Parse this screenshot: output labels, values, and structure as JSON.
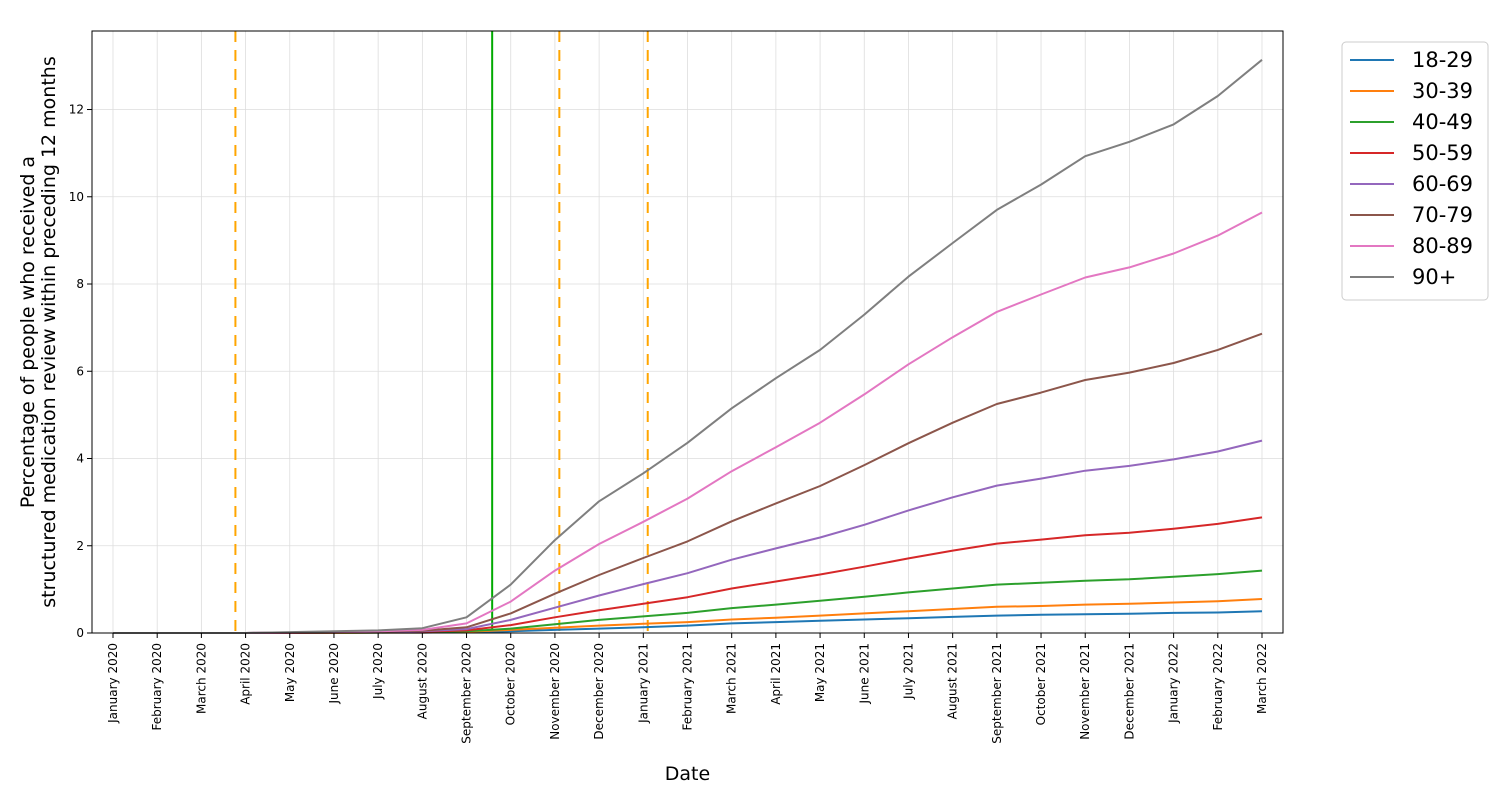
{
  "chart_data": {
    "type": "line",
    "title": "",
    "xlabel": "Date",
    "ylabel_line1": "Percentage of people who received a",
    "ylabel_line2": "structured medication review within preceding 12 months",
    "ylim": [
      0,
      13.8
    ],
    "yticks": [
      0,
      2,
      4,
      6,
      8,
      10,
      12
    ],
    "grid": true,
    "legend_position": "outside-top-right",
    "categories": [
      "January 2020",
      "February 2020",
      "March 2020",
      "April 2020",
      "May 2020",
      "June 2020",
      "July 2020",
      "August 2020",
      "September 2020",
      "October 2020",
      "November 2020",
      "December 2020",
      "January 2021",
      "February 2021",
      "March 2021",
      "April 2021",
      "May 2021",
      "June 2021",
      "July 2021",
      "August 2021",
      "September 2021",
      "October 2021",
      "November 2021",
      "December 2021",
      "January 2022",
      "February 2022",
      "March 2022"
    ],
    "series": [
      {
        "name": "18-29",
        "color": "#1f77b4",
        "values": [
          0,
          0,
          0,
          0,
          0,
          0,
          0.01,
          0.01,
          0.02,
          0.04,
          0.07,
          0.1,
          0.13,
          0.17,
          0.22,
          0.25,
          0.28,
          0.31,
          0.34,
          0.37,
          0.4,
          0.42,
          0.43,
          0.44,
          0.46,
          0.47,
          0.5
        ]
      },
      {
        "name": "30-39",
        "color": "#ff7f0e",
        "values": [
          0,
          0,
          0,
          0,
          0,
          0,
          0.01,
          0.01,
          0.03,
          0.07,
          0.12,
          0.17,
          0.21,
          0.25,
          0.31,
          0.35,
          0.4,
          0.45,
          0.5,
          0.55,
          0.6,
          0.62,
          0.65,
          0.67,
          0.7,
          0.73,
          0.78
        ]
      },
      {
        "name": "40-49",
        "color": "#2ca02c",
        "values": [
          0,
          0,
          0,
          0,
          0,
          0.01,
          0.01,
          0.02,
          0.04,
          0.1,
          0.2,
          0.3,
          0.38,
          0.46,
          0.57,
          0.65,
          0.74,
          0.83,
          0.93,
          1.02,
          1.11,
          1.15,
          1.2,
          1.23,
          1.29,
          1.35,
          1.43
        ]
      },
      {
        "name": "50-59",
        "color": "#d62728",
        "values": [
          0,
          0,
          0,
          0,
          0,
          0.01,
          0.02,
          0.03,
          0.06,
          0.18,
          0.36,
          0.52,
          0.67,
          0.82,
          1.02,
          1.18,
          1.34,
          1.52,
          1.71,
          1.89,
          2.05,
          2.14,
          2.24,
          2.3,
          2.39,
          2.5,
          2.65
        ]
      },
      {
        "name": "60-69",
        "color": "#9467bd",
        "values": [
          0,
          0,
          0,
          0,
          0.01,
          0.01,
          0.02,
          0.04,
          0.09,
          0.3,
          0.58,
          0.86,
          1.12,
          1.37,
          1.68,
          1.94,
          2.19,
          2.48,
          2.81,
          3.11,
          3.38,
          3.54,
          3.72,
          3.83,
          3.98,
          4.16,
          4.41
        ]
      },
      {
        "name": "70-79",
        "color": "#8c564b",
        "values": [
          0,
          0,
          0,
          0,
          0.01,
          0.02,
          0.03,
          0.05,
          0.13,
          0.45,
          0.9,
          1.33,
          1.72,
          2.1,
          2.56,
          2.97,
          3.37,
          3.85,
          4.35,
          4.82,
          5.25,
          5.51,
          5.8,
          5.97,
          6.19,
          6.49,
          6.86
        ]
      },
      {
        "name": "80-89",
        "color": "#e377c2",
        "values": [
          0,
          0,
          0,
          0,
          0.01,
          0.02,
          0.04,
          0.07,
          0.22,
          0.72,
          1.43,
          2.04,
          2.55,
          3.08,
          3.71,
          4.26,
          4.82,
          5.47,
          6.16,
          6.78,
          7.36,
          7.76,
          8.15,
          8.38,
          8.7,
          9.11,
          9.64
        ]
      },
      {
        "name": "90+",
        "color": "#7f7f7f",
        "values": [
          0,
          0,
          0,
          0,
          0.02,
          0.04,
          0.06,
          0.11,
          0.36,
          1.11,
          2.13,
          3.02,
          3.66,
          4.36,
          5.15,
          5.84,
          6.49,
          7.3,
          8.17,
          8.94,
          9.7,
          10.28,
          10.93,
          11.26,
          11.66,
          12.31,
          13.14
        ]
      }
    ],
    "reference_lines": [
      {
        "date_index": 2.77,
        "color": "#ffa500",
        "style": "dashed"
      },
      {
        "date_index": 8.58,
        "color": "#00aa00",
        "style": "solid"
      },
      {
        "date_index": 10.1,
        "color": "#ffa500",
        "style": "dashed"
      },
      {
        "date_index": 12.1,
        "color": "#ffa500",
        "style": "dashed"
      }
    ]
  }
}
